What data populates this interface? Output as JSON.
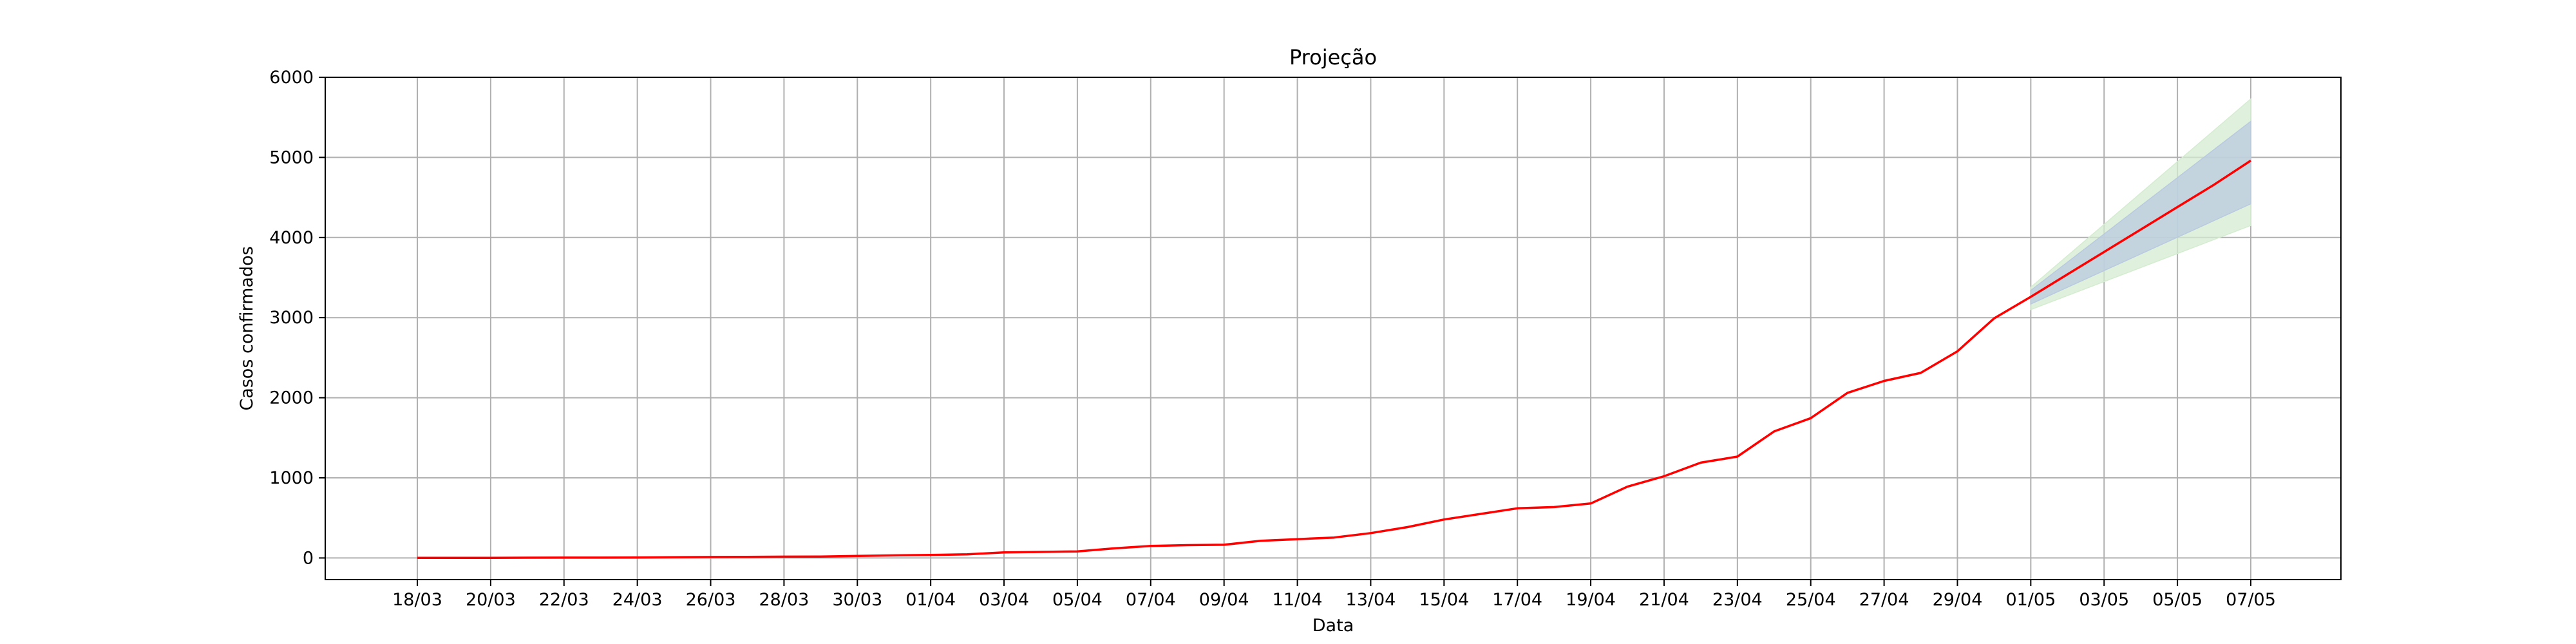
{
  "chart_data": {
    "type": "line",
    "title": "Projeção",
    "xlabel": "Data",
    "ylabel": "Casos confirmados",
    "ylim": [
      -270,
      6000
    ],
    "yticks": [
      0,
      1000,
      2000,
      3000,
      4000,
      5000,
      6000
    ],
    "grid": true,
    "x": [
      "18/03",
      "19/03",
      "20/03",
      "21/03",
      "22/03",
      "23/03",
      "24/03",
      "25/03",
      "26/03",
      "27/03",
      "28/03",
      "29/03",
      "30/03",
      "31/03",
      "01/04",
      "02/04",
      "03/04",
      "04/04",
      "05/04",
      "06/04",
      "07/04",
      "08/04",
      "09/04",
      "10/04",
      "11/04",
      "12/04",
      "13/04",
      "14/04",
      "15/04",
      "16/04",
      "17/04",
      "18/04",
      "19/04",
      "20/04",
      "21/04",
      "22/04",
      "23/04",
      "24/04",
      "25/04",
      "26/04",
      "27/04",
      "28/04",
      "29/04",
      "30/04",
      "01/05",
      "02/05",
      "03/05",
      "04/05",
      "05/05",
      "06/05",
      "07/05"
    ],
    "xtick_labels": [
      "18/03",
      "20/03",
      "22/03",
      "24/03",
      "26/03",
      "28/03",
      "30/03",
      "01/04",
      "03/04",
      "05/04",
      "07/04",
      "09/04",
      "11/04",
      "13/04",
      "15/04",
      "17/04",
      "19/04",
      "21/04",
      "23/04",
      "25/04",
      "27/04",
      "29/04",
      "01/05",
      "03/05",
      "05/05",
      "07/05"
    ],
    "series": [
      {
        "color": "#ff0000",
        "values": [
          1,
          1,
          2,
          3,
          4,
          4,
          5,
          10,
          12,
          14,
          16,
          18,
          25,
          32,
          38,
          45,
          70,
          76,
          82,
          120,
          150,
          160,
          165,
          215,
          235,
          255,
          310,
          385,
          480,
          550,
          620,
          635,
          680,
          890,
          1020,
          1190,
          1265,
          1580,
          1745,
          2060,
          2210,
          2310,
          2580,
          2990,
          3260,
          3540,
          3820,
          4100,
          4380,
          4660,
          4960
        ]
      }
    ],
    "bands": [
      {
        "color": "#d4ecd0",
        "x": [
          "01/05",
          "07/05"
        ],
        "lower": [
          3100,
          4150
        ],
        "upper": [
          3380,
          5730
        ]
      },
      {
        "color": "#b9c9e0",
        "x": [
          "01/05",
          "07/05"
        ],
        "lower": [
          3170,
          4420
        ],
        "upper": [
          3340,
          5450
        ]
      }
    ]
  }
}
